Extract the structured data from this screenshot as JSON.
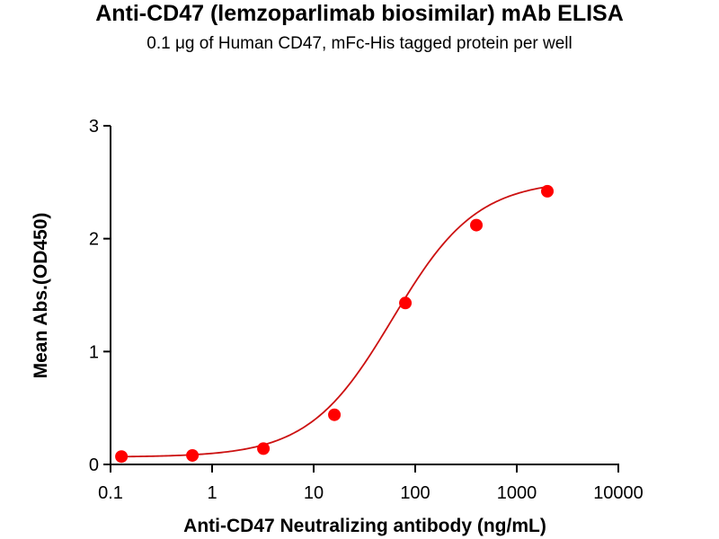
{
  "chart_data": {
    "type": "scatter",
    "title": "Anti-CD47 (lemzoparlimab biosimilar) mAb ELISA",
    "subtitle": "0.1 μg of Human CD47, mFc-His tagged protein per well",
    "xlabel": "Anti-CD47 Neutralizing antibody (ng/mL)",
    "ylabel": "Mean Abs.(OD450)",
    "xscale": "log",
    "xlim": [
      0.1,
      10000
    ],
    "ylim": [
      0,
      3
    ],
    "xticks": [
      0.1,
      1,
      10,
      100,
      1000,
      10000
    ],
    "xtick_labels": [
      "0.1",
      "1",
      "10",
      "100",
      "1000",
      "10000"
    ],
    "yticks": [
      0,
      1,
      2,
      3
    ],
    "ytick_labels": [
      "0",
      "1",
      "2",
      "3"
    ],
    "grid": false,
    "legend": "none",
    "series": [
      {
        "name": "Anti-CD47 (lemzoparlimab biosimilar)",
        "color": "#ff0000",
        "line_color": "#cc1111",
        "fit": "4PL",
        "x": [
          0.128,
          0.64,
          3.2,
          16,
          80,
          400,
          2000
        ],
        "y": [
          0.07,
          0.08,
          0.14,
          0.44,
          1.43,
          2.12,
          2.42
        ]
      }
    ]
  }
}
